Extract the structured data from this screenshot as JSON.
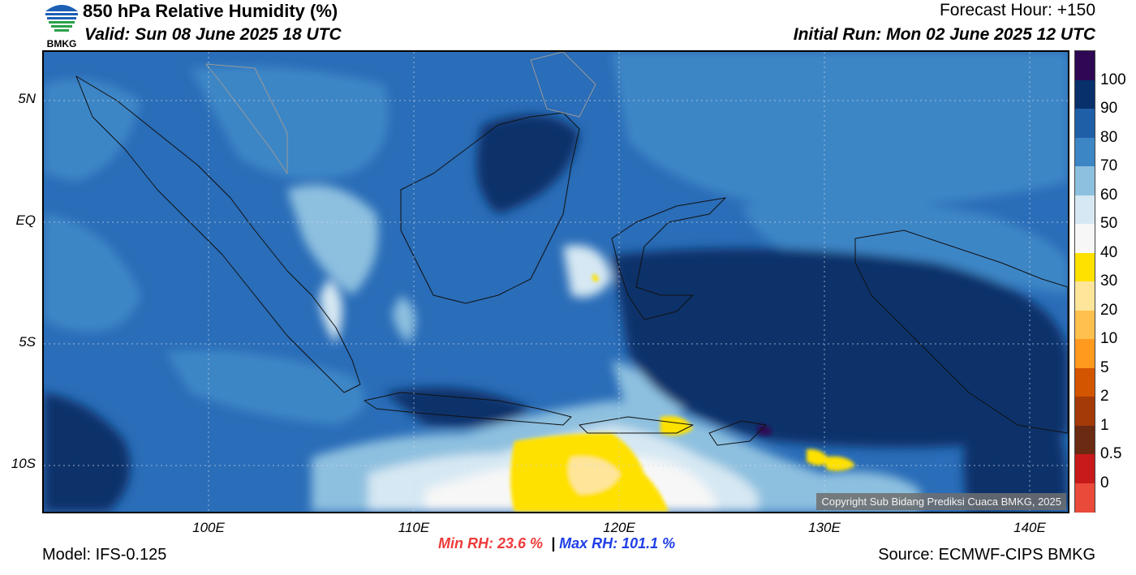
{
  "header": {
    "title": "850 hPa Relative Humidity (%)",
    "valid": "Valid: Sun 08 June 2025 18 UTC",
    "forecast_hour": "Forecast Hour: +150",
    "initial_run": "Initial Run: Mon 02 June 2025 12 UTC"
  },
  "logo": {
    "text": "BMKG"
  },
  "map": {
    "lat_labels": [
      "5N",
      "EQ",
      "5S",
      "10S"
    ],
    "lon_labels": [
      "100E",
      "110E",
      "120E",
      "130E",
      "140E"
    ],
    "copyright": "Copyright Sub Bidang Prediksi Cuaca BMKG, 2025"
  },
  "colorbar": {
    "labels": [
      "100",
      "90",
      "80",
      "70",
      "60",
      "50",
      "40",
      "30",
      "20",
      "10",
      "5",
      "2",
      "1",
      "0.5",
      "0"
    ],
    "colors": [
      "#2e0854",
      "#08306b",
      "#1f5fa8",
      "#3d86c6",
      "#8dc0df",
      "#d6e8f3",
      "#f7f7f7",
      "#ffe100",
      "#ffe59a",
      "#ffc04d",
      "#ff9a1f",
      "#d45500",
      "#a33a08",
      "#6b2a12",
      "#c81a1a",
      "#e94a3a"
    ]
  },
  "stats": {
    "min": "Min RH:  23.6 %",
    "separator": "|",
    "max": "Max RH: 101.1 %"
  },
  "footer": {
    "model": "Model: IFS-0.125",
    "source": "Source: ECMWF-CIPS BMKG"
  }
}
